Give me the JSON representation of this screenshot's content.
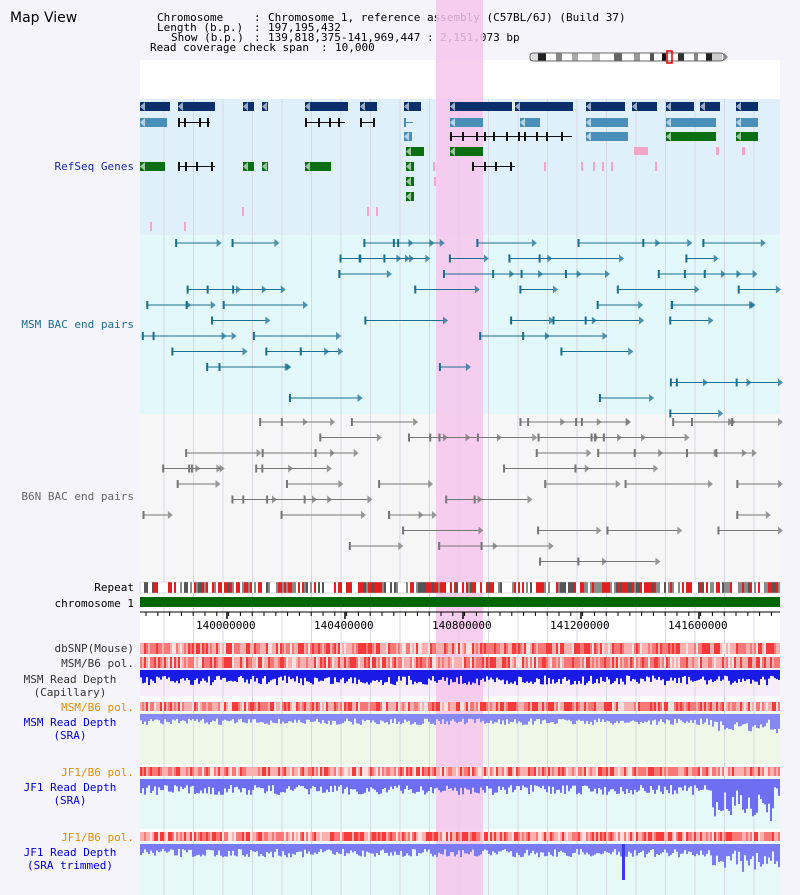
{
  "app": {
    "title": "Map View"
  },
  "info": {
    "chromosome_key": "Chromosome",
    "chromosome_value": "Chromosome 1, reference assembly (C57BL/6J) (Build 37)",
    "length_key": "Length (b.p.)",
    "length_value": "197,195,432",
    "show_key": "Show (b.p.)",
    "show_value": "139,818,375-141,969,447 : 2,151,073 bp",
    "span_key": "Read coverage check span",
    "span_value": "10,000"
  },
  "tracks": {
    "refseq": {
      "label": "RefSeq Genes",
      "bg": "#dff0fa",
      "color_main": "#0b2f6b",
      "color_alt": "#4a8fb8",
      "color_green": "#0a6e12",
      "color_pink": "#f5a6c8"
    },
    "msm_bac": {
      "label": "MSM BAC end pairs",
      "bg": "#e2f8fa",
      "color": "#1a6e8e"
    },
    "b6n_bac": {
      "label": "B6N BAC end pairs",
      "bg": "#f6f6f6",
      "color": "#777777"
    },
    "repeat": {
      "label": "Repeat"
    },
    "chromosome": {
      "label": "chromosome 1",
      "color": "#006600"
    },
    "dbsnp": {
      "label": "dbSNP(Mouse)"
    },
    "msm_b6_pol": {
      "label": "MSM/B6 pol."
    },
    "msm_depth_cap": {
      "label": "MSM Read Depth\n(Capillary)"
    },
    "msm_b6_pol2": {
      "label": "MSM/B6 pol.",
      "color": "#e09000"
    },
    "msm_depth_sra": {
      "label": "MSM Read Depth\n(SRA)",
      "color": "#0000cc"
    },
    "jf1_b6_pol": {
      "label": "JF1/B6 pol.",
      "color": "#e09000"
    },
    "jf1_depth_sra": {
      "label": "JF1 Read Depth\n(SRA)",
      "color": "#0000cc"
    },
    "jf1_b6_pol2": {
      "label": "JF1/B6 pol.",
      "color": "#e09000"
    },
    "jf1_depth_trim": {
      "label": "JF1 Read Depth\n(SRA trimmed)",
      "color": "#0000cc"
    }
  },
  "axis": {
    "ticks": [
      "140000000",
      "140400000",
      "140800000",
      "141200000",
      "141600000"
    ]
  },
  "highlight": {
    "color": "#f7c6ec"
  }
}
